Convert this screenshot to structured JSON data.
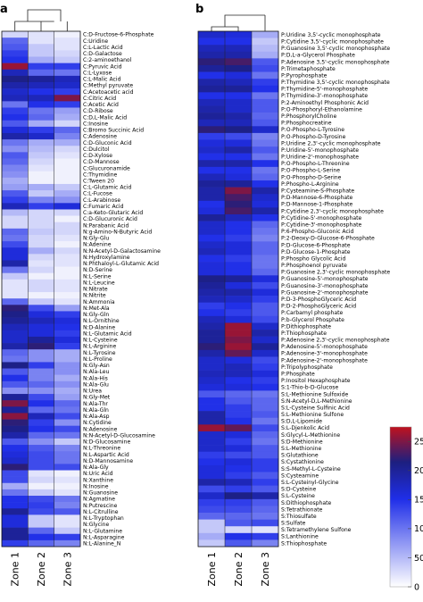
{
  "chart_data": [
    {
      "panel_label": "a",
      "type": "heatmap",
      "columns": [
        "Zone 1",
        "Zone 2",
        "Zone 3"
      ],
      "rows": [
        "C:D-Fructose-6-Phosphate",
        "C:Uridine",
        "C:L-Lactic Acid",
        "C:D-Galactose",
        "C:2-aminoethanol",
        "C:Pyruvic Acid",
        "C:L-Lyxose",
        "C:L-Malic Acid",
        "C:Methyl pyruvate",
        "C:Acetoacetic acid",
        "C:Citric Acid",
        "C:Acetic Acid",
        "C:D-Ribose",
        "C:D,L-Malic Acid",
        "C:Inosine",
        "C:Bromo Succinic Acid",
        "C:Adenosine",
        "C:D-Gluconic Acid",
        "C:Dulcitol",
        "C:D-Xylose",
        "C:D-Mannose",
        "C:Glucuronamide",
        "C:Thymidine",
        "C:Tween 20",
        "C:L-Glutamic Acid",
        "C:L-Fucose",
        "C:L-Arabinose",
        "C:Fumaric Acid",
        "C:a-Keto-Glutaric Acid",
        "C:D-Glucuronic Acid",
        "N:Parabanic Acid",
        "N:g-Amino-N-Butyric Acid",
        "N:Gly-Glu",
        "N:Adenine",
        "N:N-Acetyl-D-Galactosamine",
        "N:Hydroxylamine",
        "N:Phthaloyl-L-Glutamic Acid",
        "N:D-Serine",
        "N:L-Serine",
        "N:L-Leucine",
        "N:Nitrate",
        "N:Nitrite",
        "N:Ammonia",
        "N:Met-Ala",
        "N:Gly-Gln",
        "N:L-Ornithine",
        "N:D-Alanine",
        "N:L-Glutamic Acid",
        "N:L-Cysteine",
        "N:L-Arginine",
        "N:L-Tyrosine",
        "N:L-Proline",
        "N:Gly-Asn",
        "N:Ala-Leu",
        "N:Ala-His",
        "N:Ala-Glu",
        "N:Urea",
        "N:Gly-Met",
        "N:Ala-Thr",
        "N:Ala-Gln",
        "N:Ala-Asp",
        "N:Cytidine",
        "N:Adenosine",
        "N:N-Acetyl-D-Glucosamine",
        "N:D-Glucosamine",
        "N:L-Threonine",
        "N:L-Aspartic Acid",
        "N:D-Mannosamine",
        "N:Ala-Gly",
        "N:Uric Acid",
        "N:Xanthine",
        "N:Inosine",
        "N:Guanosine",
        "N:Agmatine",
        "N:Putrescine",
        "N:L-Citrulline",
        "N:L-Tryptophan",
        "N:Glycine",
        "N:L-Glutamine",
        "N:L-Asparagine",
        "N:L-Alanine_N"
      ],
      "values": [
        [
          30,
          20,
          10
        ],
        [
          110,
          20,
          20
        ],
        [
          120,
          40,
          20
        ],
        [
          140,
          40,
          30
        ],
        [
          150,
          60,
          40
        ],
        [
          260,
          140,
          140
        ],
        [
          180,
          110,
          100
        ],
        [
          210,
          200,
          180
        ],
        [
          190,
          180,
          170
        ],
        [
          170,
          150,
          140
        ],
        [
          180,
          180,
          250
        ],
        [
          100,
          150,
          140
        ],
        [
          140,
          100,
          70
        ],
        [
          150,
          110,
          60
        ],
        [
          120,
          60,
          30
        ],
        [
          160,
          140,
          110
        ],
        [
          190,
          170,
          90
        ],
        [
          100,
          60,
          60
        ],
        [
          80,
          50,
          30
        ],
        [
          120,
          40,
          20
        ],
        [
          110,
          30,
          10
        ],
        [
          90,
          20,
          10
        ],
        [
          80,
          10,
          10
        ],
        [
          60,
          10,
          10
        ],
        [
          70,
          60,
          40
        ],
        [
          120,
          40,
          60
        ],
        [
          140,
          90,
          80
        ],
        [
          180,
          140,
          160
        ],
        [
          50,
          30,
          30
        ],
        [
          30,
          30,
          10
        ],
        [
          30,
          30,
          30
        ],
        [
          110,
          40,
          30
        ],
        [
          100,
          30,
          20
        ],
        [
          130,
          30,
          10
        ],
        [
          160,
          60,
          30
        ],
        [
          160,
          30,
          20
        ],
        [
          190,
          20,
          20
        ],
        [
          100,
          30,
          10
        ],
        [
          40,
          10,
          10
        ],
        [
          20,
          30,
          20
        ],
        [
          20,
          30,
          20
        ],
        [
          20,
          10,
          10
        ],
        [
          110,
          40,
          20
        ],
        [
          220,
          130,
          70
        ],
        [
          210,
          160,
          140
        ],
        [
          200,
          180,
          160
        ],
        [
          180,
          160,
          150
        ],
        [
          170,
          160,
          140
        ],
        [
          170,
          200,
          160
        ],
        [
          190,
          220,
          140
        ],
        [
          110,
          80,
          60
        ],
        [
          100,
          80,
          60
        ],
        [
          210,
          140,
          80
        ],
        [
          120,
          90,
          80
        ],
        [
          150,
          90,
          60
        ],
        [
          120,
          110,
          80
        ],
        [
          80,
          80,
          60
        ],
        [
          200,
          130,
          70
        ],
        [
          250,
          150,
          110
        ],
        [
          200,
          110,
          100
        ],
        [
          255,
          180,
          130
        ],
        [
          220,
          140,
          80
        ],
        [
          210,
          150,
          130
        ],
        [
          190,
          110,
          100
        ],
        [
          120,
          80,
          40
        ],
        [
          150,
          120,
          90
        ],
        [
          160,
          130,
          100
        ],
        [
          170,
          130,
          100
        ],
        [
          220,
          130,
          130
        ],
        [
          130,
          20,
          10
        ],
        [
          130,
          30,
          20
        ],
        [
          60,
          10,
          10
        ],
        [
          100,
          40,
          20
        ],
        [
          150,
          130,
          100
        ],
        [
          150,
          140,
          90
        ],
        [
          200,
          130,
          120
        ],
        [
          160,
          40,
          20
        ],
        [
          160,
          40,
          20
        ],
        [
          200,
          110,
          40
        ],
        [
          200,
          150,
          140
        ],
        [
          140,
          110,
          90
        ]
      ]
    },
    {
      "panel_label": "b",
      "type": "heatmap",
      "columns": [
        "Zone 1",
        "Zone 2",
        "Zone 3"
      ],
      "rows": [
        "P:Uridine 3,5'-cyclic monophosphate",
        "P:Cytidine 3,5'-cyclic monophosphate",
        "P:Guanosine 3,5'-cyclic monophosphate",
        "P:D,L-a-Glycerol Phosphate",
        "P:Adenosine 3,5'-cyclic monophosphate",
        "P:Trimetaphosphate",
        "P:Pyrophosphate",
        "P:Thymidine 3,5'-cyclic monophosphate",
        "P:Thymidine-5'-monophosphate",
        "P:Thymidine-3'-monophosphate",
        "P:2-Aminoethyl Phosphonic Acid",
        "P:O-Phosphoryl-Ethanolamine",
        "P:PhosphorylCholine",
        "P:Phosphocreatine",
        "P:O-Phospho-L-Tyrosine",
        "P:O-Phospho-D-Tyrosine",
        "P:Uridine 2,3'-cyclic monophosphate",
        "P:Uridine-5'-monophosphate",
        "P:Uridine-2'-monophosphate",
        "P:O-Phospho-L-Threonine",
        "P:O-Phospho-L-Serine",
        "P:O-Phospho-D-Serine",
        "P:Phospho-L-Arginine",
        "P:Cysteamine-S-Phosphate",
        "P:D-Mannose-6-Phosphate",
        "P:D-Mannose-1-Phosphate",
        "P:Cytidine 2,3'-cyclic monophosphate",
        "P:Cytidine-5'-monophosphate",
        "P:Cytidine-3'-monophosphate",
        "P:6-Phospho-Gluconic Acid",
        "P:2-Deoxy-D-Glucose-6-Phosphate",
        "P:D-Glucose-6-Phosphate",
        "P:D-Glucose-1-Phosphate",
        "P:Phospho Glycolic Acid",
        "P:Phosphoenol pyruvate",
        "P:Guanosine 2,3'-cyclic monophosphate",
        "P:Guanosine-5'-monophosphate",
        "P:Guanosine-3'-monophosphate",
        "P:Guanosine-2'-monophosphate",
        "P:D-3-PhosphoGlyceric Acid",
        "P:D-2-PhosphoGlyceric Acid",
        "P:Carbamyl phosphate",
        "P:b-Glycerol Phosphate",
        "P:Dithiophosphate",
        "P:Thiophosphate",
        "P:Adenosine 2,3'-cyclic monophosphate",
        "P:Adenosine-5'-monophosphate",
        "P:Adenosine-3'-monophosphate",
        "P:Adenosine-2'-monophosphate",
        "P:Tripolyphosphate",
        "P:Phosphate",
        "P:Inositol Hexaphosphate",
        "S:1-Thio-b-D-Glucose",
        "S:L-Methionine Sulfoxide",
        "S:N-Acetyl-D,L-Methionine",
        "S:L-Cysteine Sulfinic Acid",
        "S:L-Methionine Sulfone",
        "S:D,L-Lipomide",
        "S:L-Djenkolic Acid",
        "S:Glycyl-L-Methionine",
        "S:D-Methionine",
        "S:L-Methionine",
        "S:Glutathione",
        "S:Cystathionine",
        "S:S-Methyl-L-Cysteine",
        "S:Cysteamine",
        "S:L-Cysteinyl-Glycine",
        "S:D-Cysteine",
        "S:L-Cysteine",
        "S:Dithiophosphate",
        "S:Tetrathionate",
        "S:Thiosulfate",
        "S:Sulfate",
        "S:Tetramethylene Sulfone",
        "S:Lanthionine",
        "S:Thiophosphate"
      ],
      "values": [
        [
          170,
          160,
          60
        ],
        [
          150,
          150,
          40
        ],
        [
          180,
          180,
          50
        ],
        [
          190,
          190,
          60
        ],
        [
          220,
          230,
          120
        ],
        [
          200,
          210,
          130
        ],
        [
          150,
          160,
          100
        ],
        [
          190,
          180,
          140
        ],
        [
          200,
          200,
          150
        ],
        [
          150,
          150,
          100
        ],
        [
          180,
          170,
          120
        ],
        [
          190,
          170,
          120
        ],
        [
          200,
          190,
          110
        ],
        [
          180,
          180,
          120
        ],
        [
          220,
          210,
          170
        ],
        [
          140,
          130,
          90
        ],
        [
          160,
          160,
          100
        ],
        [
          170,
          190,
          120
        ],
        [
          150,
          150,
          100
        ],
        [
          190,
          190,
          150
        ],
        [
          150,
          150,
          100
        ],
        [
          180,
          160,
          110
        ],
        [
          200,
          200,
          150
        ],
        [
          190,
          250,
          190
        ],
        [
          190,
          230,
          170
        ],
        [
          150,
          220,
          160
        ],
        [
          160,
          230,
          190
        ],
        [
          200,
          180,
          150
        ],
        [
          170,
          150,
          110
        ],
        [
          170,
          150,
          100
        ],
        [
          150,
          140,
          90
        ],
        [
          170,
          160,
          110
        ],
        [
          180,
          160,
          110
        ],
        [
          150,
          140,
          100
        ],
        [
          160,
          150,
          100
        ],
        [
          160,
          150,
          110
        ],
        [
          210,
          200,
          160
        ],
        [
          200,
          160,
          130
        ],
        [
          190,
          190,
          160
        ],
        [
          180,
          170,
          140
        ],
        [
          140,
          150,
          120
        ],
        [
          150,
          140,
          120
        ],
        [
          180,
          160,
          130
        ],
        [
          190,
          260,
          170
        ],
        [
          200,
          260,
          190
        ],
        [
          200,
          250,
          170
        ],
        [
          220,
          260,
          200
        ],
        [
          190,
          240,
          170
        ],
        [
          170,
          160,
          130
        ],
        [
          170,
          180,
          140
        ],
        [
          180,
          180,
          160
        ],
        [
          170,
          150,
          140
        ],
        [
          160,
          160,
          150
        ],
        [
          120,
          110,
          100
        ],
        [
          150,
          120,
          110
        ],
        [
          150,
          140,
          110
        ],
        [
          190,
          140,
          120
        ],
        [
          190,
          150,
          100
        ],
        [
          260,
          240,
          130
        ],
        [
          170,
          160,
          110
        ],
        [
          170,
          140,
          100
        ],
        [
          170,
          160,
          120
        ],
        [
          140,
          130,
          120
        ],
        [
          150,
          160,
          140
        ],
        [
          160,
          150,
          140
        ],
        [
          160,
          140,
          120
        ],
        [
          190,
          180,
          140
        ],
        [
          130,
          140,
          120
        ],
        [
          170,
          210,
          190
        ],
        [
          140,
          140,
          120
        ],
        [
          130,
          130,
          110
        ],
        [
          110,
          110,
          100
        ],
        [
          40,
          120,
          130
        ],
        [
          40,
          30,
          20
        ],
        [
          60,
          150,
          140
        ],
        [
          40,
          120,
          90
        ]
      ]
    }
  ],
  "colorbar": {
    "ticks": [
      "250",
      "200",
      "150",
      "100",
      "50",
      "0"
    ],
    "min": 0,
    "max": 275,
    "colors": [
      "#ffffff",
      "#1f2ee8",
      "#1d1f80",
      "#c0121e"
    ]
  }
}
